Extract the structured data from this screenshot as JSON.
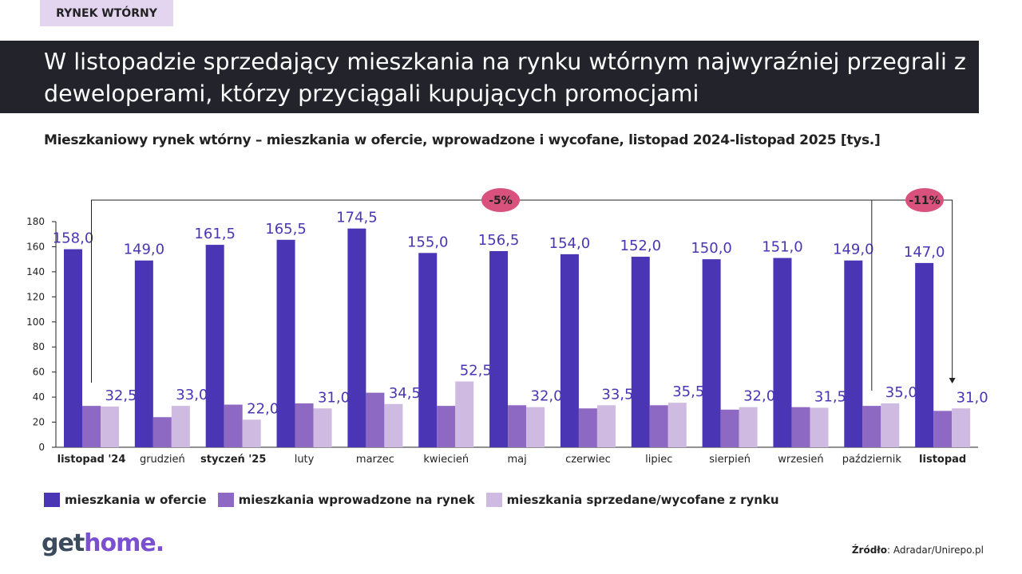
{
  "tag": "RYNEK WTÓRNY",
  "headline": "W listopadzie sprzedający mieszkania na rynku wtórnym najwyraźniej przegrali z deweloperami, którzy przyciągali kupujących promocjami",
  "logo": {
    "part1": "get",
    "part2": "home."
  },
  "source": {
    "label": "Źródło",
    "text": ": Adradar/Unirepo.pl"
  },
  "chart_data": {
    "type": "bar",
    "title": "Mieszkaniowy rynek wtórny – mieszkania w ofercie, wprowadzone i wycofane, listopad 2024-listopad 2025 [tys.]",
    "categories": [
      "listopad '24",
      "grudzień",
      "styczeń '25",
      "luty",
      "marzec",
      "kwiecień",
      "maj",
      "czerwiec",
      "lipiec",
      "sierpień",
      "wrzesień",
      "październik",
      "listopad"
    ],
    "bold_categories": [
      0,
      2,
      12
    ],
    "ylim": [
      0,
      180
    ],
    "yticks": [
      0,
      20,
      40,
      60,
      80,
      100,
      120,
      140,
      160,
      180
    ],
    "grid": false,
    "legend_position": "bottom-left",
    "series": [
      {
        "name": "mieszkania w ofercie",
        "color": "#4a36b4",
        "labeled": true,
        "values": [
          158.0,
          149.0,
          161.5,
          165.5,
          174.5,
          155.0,
          156.5,
          154.0,
          152.0,
          150.0,
          151.0,
          149.0,
          147.0
        ]
      },
      {
        "name": "mieszkania wprowadzone na rynek",
        "color": "#8e69c3",
        "labeled": false,
        "values": [
          33,
          24,
          34,
          35,
          43.5,
          33,
          33.5,
          31,
          33.5,
          30,
          32,
          33,
          29
        ]
      },
      {
        "name": "mieszkania sprzedane/wycofane z rynku",
        "color": "#cfbbe2",
        "labeled": true,
        "values": [
          32.5,
          33.0,
          22.0,
          31.0,
          34.5,
          52.5,
          32.0,
          33.5,
          35.5,
          32.0,
          31.5,
          35.0,
          31.0
        ]
      }
    ],
    "annotations": [
      {
        "text": "-5%",
        "from": "listopad '24",
        "to": "listopad"
      },
      {
        "text": "-11%",
        "from": "październik",
        "to": "listopad"
      }
    ],
    "annotation_color": "#d9527e"
  }
}
